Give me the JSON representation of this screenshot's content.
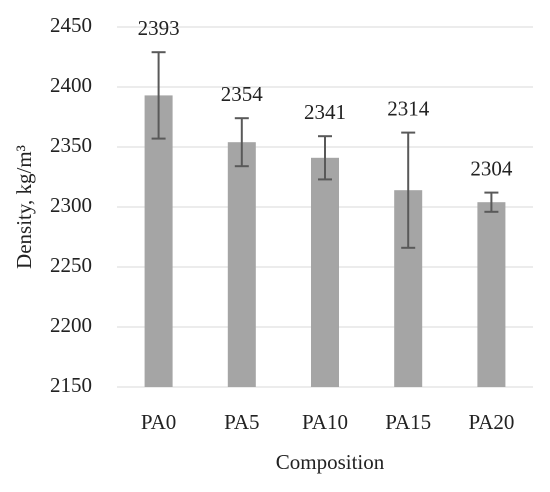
{
  "chart_data": {
    "type": "bar",
    "x_label": "Composition",
    "y_label": "Density, kg/m³",
    "categories": [
      "PA0",
      "PA5",
      "PA10",
      "PA15",
      "PA20"
    ],
    "values": [
      2393,
      2354,
      2341,
      2314,
      2304
    ],
    "errors": [
      36,
      20,
      18,
      48,
      8
    ],
    "color": "#a5a5a5",
    "error_color": "#595959",
    "ylim": [
      2150,
      2450
    ],
    "yticks": [
      2150,
      2200,
      2250,
      2300,
      2350,
      2400,
      2450
    ],
    "grid": true
  }
}
